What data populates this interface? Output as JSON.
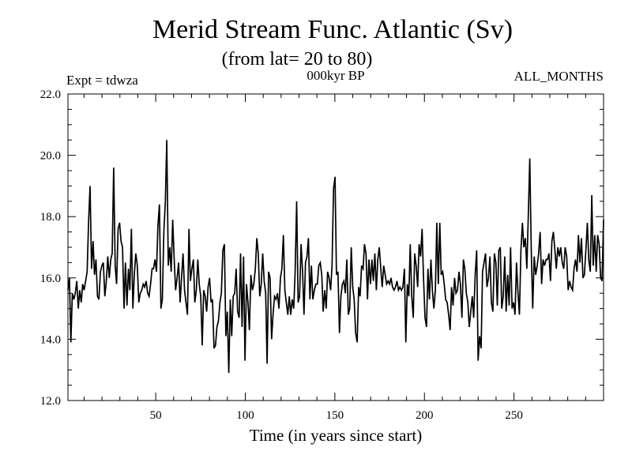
{
  "chart_data": {
    "type": "line",
    "title": "Merid Stream Func. Atlantic (Sv)",
    "subtitle": "(from lat= 20 to 80)",
    "header_left": "Expt = tdwza",
    "header_center": "000kyr BP",
    "header_right": "ALL_MONTHS",
    "xlabel": "Time (in years since start)",
    "ylabel": "",
    "xlim": [
      1,
      300
    ],
    "ylim": [
      12.0,
      22.0
    ],
    "xticks": [
      50,
      100,
      150,
      200,
      250
    ],
    "yticks": [
      "12.0",
      "14.0",
      "16.0",
      "18.0",
      "20.0",
      "22.0"
    ],
    "grid": false,
    "series": [
      {
        "values": [
          15.6,
          16.0,
          13.9,
          15.5,
          15.3,
          15.5,
          15.9,
          15.0,
          15.6,
          15.2,
          15.8,
          15.6,
          15.9,
          16.2,
          17.8,
          19.0,
          16.3,
          17.2,
          16.1,
          16.6,
          15.4,
          15.3,
          16.2,
          16.4,
          16.5,
          15.4,
          15.9,
          16.7,
          16.0,
          16.6,
          16.8,
          19.6,
          16.4,
          15.8,
          17.6,
          17.8,
          17.2,
          17.0,
          15.0,
          16.5,
          15.1,
          16.3,
          15.6,
          17.6,
          15.0,
          16.1,
          16.8,
          16.4,
          15.2,
          15.5,
          15.6,
          15.8,
          15.7,
          15.9,
          15.5,
          15.4,
          15.8,
          16.3,
          16.3,
          16.6,
          16.2,
          17.7,
          18.4,
          15.0,
          15.3,
          17.5,
          18.5,
          20.5,
          16.4,
          17.0,
          16.2,
          17.9,
          16.6,
          15.6,
          16.0,
          16.5,
          15.2,
          16.0,
          16.8,
          15.6,
          15.2,
          14.8,
          17.6,
          15.9,
          16.3,
          16.6,
          15.2,
          15.6,
          16.6,
          15.8,
          15.4,
          13.8,
          15.6,
          15.4,
          14.9,
          15.7,
          16.0,
          15.2,
          15.3,
          13.7,
          13.8,
          14.4,
          14.6,
          15.2,
          15.5,
          16.9,
          17.1,
          14.1,
          14.9,
          12.9,
          15.3,
          14.1,
          15.4,
          15.5,
          16.3,
          14.9,
          14.7,
          16.8,
          14.4,
          16.7,
          13.3,
          15.8,
          15.2,
          14.3,
          16.1,
          15.6,
          15.8,
          16.3,
          17.3,
          16.8,
          15.4,
          15.8,
          16.8,
          15.9,
          15.5,
          13.2,
          16.2,
          16.0,
          14.0,
          14.8,
          15.4,
          15.3,
          15.5,
          15.0,
          16.0,
          16.3,
          17.4,
          15.6,
          15.2,
          14.8,
          15.4,
          14.8,
          15.3,
          15.0,
          16.2,
          18.5,
          15.2,
          15.4,
          17.1,
          16.2,
          14.8,
          16.5,
          16.7,
          17.3,
          15.3,
          16.4,
          15.3,
          15.6,
          15.8,
          15.8,
          16.4,
          16.5,
          16.1,
          14.9,
          15.6,
          15.0,
          16.2,
          16.0,
          15.6,
          16.4,
          18.9,
          19.3,
          16.1,
          16.2,
          14.2,
          15.4,
          15.8,
          15.9,
          15.5,
          16.6,
          14.8,
          15.0,
          17.0,
          15.7,
          15.3,
          14.2,
          13.9,
          15.7,
          15.4,
          16.4,
          16.3,
          17.1,
          16.8,
          15.3,
          16.6,
          15.8,
          16.6,
          15.9,
          16.8,
          15.6,
          16.6,
          17.0,
          16.3,
          15.7,
          16.4,
          16.1,
          15.8,
          15.9,
          15.8,
          16.0,
          15.7,
          15.6,
          15.7,
          15.9,
          15.6,
          15.7,
          15.6,
          15.7,
          16.3,
          13.9,
          15.8,
          15.4,
          17.1,
          15.4,
          14.7,
          16.8,
          16.4,
          15.7,
          17.1,
          16.7,
          17.6,
          16.0,
          14.7,
          14.4,
          16.3,
          15.3,
          16.6,
          15.6,
          15.0,
          15.6,
          17.8,
          15.8,
          17.8,
          16.1,
          16.2,
          15.8,
          15.3,
          15.2,
          14.8,
          14.3,
          15.7,
          15.1,
          16.0,
          15.5,
          15.6,
          16.2,
          15.8,
          14.7,
          16.6,
          16.3,
          15.5,
          15.2,
          14.4,
          14.9,
          15.4,
          14.7,
          16.1,
          16.9,
          13.3,
          14.1,
          13.7,
          16.2,
          16.5,
          16.8,
          15.7,
          16.0,
          16.7,
          15.2,
          14.9,
          16.8,
          16.5,
          15.1,
          16.9,
          17.0,
          15.0,
          15.4,
          16.7,
          14.9,
          16.1,
          15.1,
          17.0,
          15.0,
          15.2,
          14.8,
          16.5,
          15.5,
          14.8,
          16.9,
          17.8,
          17.0,
          17.3,
          16.3,
          18.0,
          19.9,
          16.9,
          15.0,
          16.7,
          16.1,
          16.4,
          16.8,
          17.5,
          15.8,
          16.6,
          16.4,
          16.6,
          16.6,
          16.8,
          15.9,
          17.2,
          17.5,
          16.9,
          16.3,
          17.0,
          16.7,
          17.0,
          16.5,
          16.3,
          17.0,
          16.7,
          15.6,
          15.9,
          15.7,
          15.6,
          16.3,
          16.6,
          16.2,
          17.4,
          16.5,
          17.3,
          16.0,
          16.1,
          16.9,
          17.8,
          16.6,
          16.2,
          18.7,
          16.4,
          17.4,
          16.2,
          17.4,
          17.1,
          16.0,
          15.9,
          17.9
        ]
      }
    ]
  }
}
